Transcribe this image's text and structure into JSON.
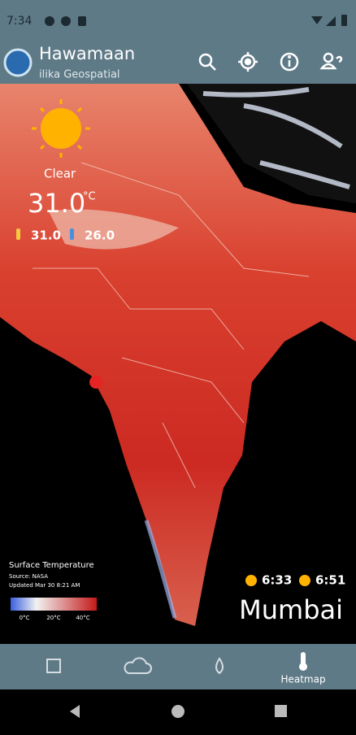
{
  "status_bar": {
    "time": "7:34"
  },
  "app_bar": {
    "title": "Hawamaan",
    "subtitle": "ilika Geospatial"
  },
  "weather": {
    "condition": "Clear",
    "temperature": "31.0",
    "unit": "°C",
    "feels_like": "31.0",
    "min": "26.0"
  },
  "legend": {
    "title": "Surface Temperature",
    "source": "Source: NASA",
    "updated": "Updated Mar 30 8:21 AM",
    "labels": [
      "0°C",
      "20°C",
      "40°C"
    ]
  },
  "sun": {
    "sunrise": "6:33",
    "sunset": "6:51"
  },
  "location": "Mumbai",
  "bottom_nav": {
    "active": "Heatmap"
  }
}
